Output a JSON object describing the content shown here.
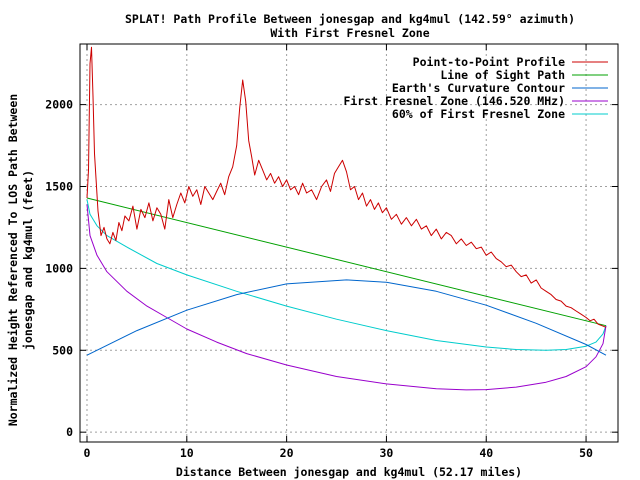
{
  "chart_data": {
    "type": "line",
    "title": "SPLAT! Path Profile Between jonesgap and kg4mul (142.59° azimuth)",
    "subtitle": "With First Fresnel Zone",
    "xlabel": "Distance Between jonesgap and kg4mul (52.17 miles)",
    "ylabel_line1": "Normalized Height Referenced To LOS Path Between",
    "ylabel_line2": "jonesgap and kg4mul (feet)",
    "xlim": [
      -0.7,
      53.2
    ],
    "ylim": [
      -60,
      2370
    ],
    "xticks": [
      0,
      10,
      20,
      30,
      40,
      50
    ],
    "yticks": [
      0,
      500,
      1000,
      1500,
      2000
    ],
    "grid": true,
    "legend_position": "top-right",
    "series": [
      {
        "name": "Point-to-Point Profile",
        "color": "#cc0000",
        "x": [
          0,
          0.15,
          0.3,
          0.45,
          0.6,
          0.75,
          0.9,
          1.1,
          1.4,
          1.7,
          2.0,
          2.3,
          2.6,
          2.9,
          3.2,
          3.5,
          3.8,
          4.2,
          4.6,
          5.0,
          5.4,
          5.8,
          6.2,
          6.6,
          7.0,
          7.4,
          7.8,
          8.2,
          8.6,
          9.0,
          9.4,
          9.8,
          10.2,
          10.6,
          11.0,
          11.4,
          11.8,
          12.2,
          12.6,
          13.0,
          13.4,
          13.8,
          14.2,
          14.6,
          15.0,
          15.3,
          15.6,
          15.9,
          16.2,
          16.5,
          16.8,
          17.2,
          17.6,
          18.0,
          18.4,
          18.8,
          19.2,
          19.6,
          20.0,
          20.4,
          20.8,
          21.2,
          21.6,
          22.0,
          22.5,
          23.0,
          23.5,
          24.0,
          24.4,
          24.8,
          25.2,
          25.6,
          26.0,
          26.4,
          26.8,
          27.2,
          27.6,
          28.0,
          28.4,
          28.8,
          29.2,
          29.6,
          30.0,
          30.5,
          31.0,
          31.5,
          32.0,
          32.5,
          33.0,
          33.5,
          34.0,
          34.5,
          35.0,
          35.5,
          36.0,
          36.5,
          37.0,
          37.5,
          38.0,
          38.5,
          39.0,
          39.5,
          40.0,
          40.5,
          41.0,
          41.5,
          42.0,
          42.5,
          43.0,
          43.5,
          44.0,
          44.5,
          45.0,
          45.5,
          46.0,
          46.5,
          47.0,
          47.5,
          48.0,
          48.5,
          49.0,
          49.5,
          50.0,
          50.4,
          50.8,
          51.2,
          51.6,
          52.0
        ],
        "y": [
          1430,
          1600,
          2250,
          2350,
          2050,
          1700,
          1550,
          1350,
          1200,
          1250,
          1180,
          1150,
          1220,
          1170,
          1280,
          1230,
          1320,
          1290,
          1380,
          1240,
          1360,
          1310,
          1400,
          1290,
          1370,
          1330,
          1240,
          1420,
          1310,
          1390,
          1460,
          1400,
          1500,
          1440,
          1480,
          1390,
          1500,
          1460,
          1420,
          1470,
          1520,
          1450,
          1560,
          1620,
          1750,
          1980,
          2150,
          2020,
          1780,
          1680,
          1570,
          1660,
          1600,
          1540,
          1580,
          1520,
          1560,
          1500,
          1540,
          1480,
          1500,
          1450,
          1520,
          1460,
          1480,
          1420,
          1500,
          1540,
          1470,
          1580,
          1620,
          1660,
          1590,
          1480,
          1500,
          1420,
          1460,
          1380,
          1420,
          1360,
          1400,
          1340,
          1370,
          1300,
          1330,
          1270,
          1310,
          1260,
          1300,
          1240,
          1260,
          1200,
          1240,
          1180,
          1220,
          1200,
          1150,
          1180,
          1140,
          1160,
          1120,
          1130,
          1080,
          1100,
          1060,
          1040,
          1010,
          1020,
          980,
          950,
          960,
          910,
          930,
          880,
          860,
          840,
          810,
          800,
          770,
          760,
          740,
          720,
          700,
          680,
          690,
          660,
          650,
          640
        ]
      },
      {
        "name": "Line of Sight Path",
        "color": "#00a000",
        "x": [
          0,
          52
        ],
        "y": [
          1430,
          650
        ]
      },
      {
        "name": "Earth's Curvature Contour",
        "color": "#0066cc",
        "x": [
          0,
          5,
          10,
          15,
          20,
          26,
          30,
          35,
          40,
          45,
          50,
          52
        ],
        "y": [
          470,
          620,
          745,
          840,
          905,
          930,
          915,
          860,
          775,
          665,
          535,
          470
        ]
      },
      {
        "name": "First Fresnel Zone (146.520 MHz)",
        "color": "#9900cc",
        "x": [
          0,
          0.3,
          1,
          2,
          4,
          6,
          8,
          10,
          13,
          16,
          20,
          25,
          30,
          35,
          38,
          40,
          43,
          46,
          48,
          50,
          51,
          51.7,
          52
        ],
        "y": [
          1390,
          1200,
          1080,
          980,
          860,
          770,
          700,
          630,
          550,
          480,
          410,
          340,
          295,
          265,
          258,
          260,
          275,
          305,
          340,
          400,
          460,
          540,
          650
        ]
      },
      {
        "name": "60% of First Fresnel Zone",
        "color": "#00cccc",
        "x": [
          0,
          0.3,
          1,
          2,
          4,
          7,
          10,
          15,
          20,
          25,
          30,
          35,
          40,
          43,
          46,
          48,
          50,
          51,
          51.7,
          52
        ],
        "y": [
          1420,
          1330,
          1260,
          1200,
          1130,
          1030,
          960,
          860,
          770,
          690,
          620,
          560,
          520,
          505,
          500,
          505,
          525,
          550,
          600,
          650
        ]
      }
    ]
  }
}
